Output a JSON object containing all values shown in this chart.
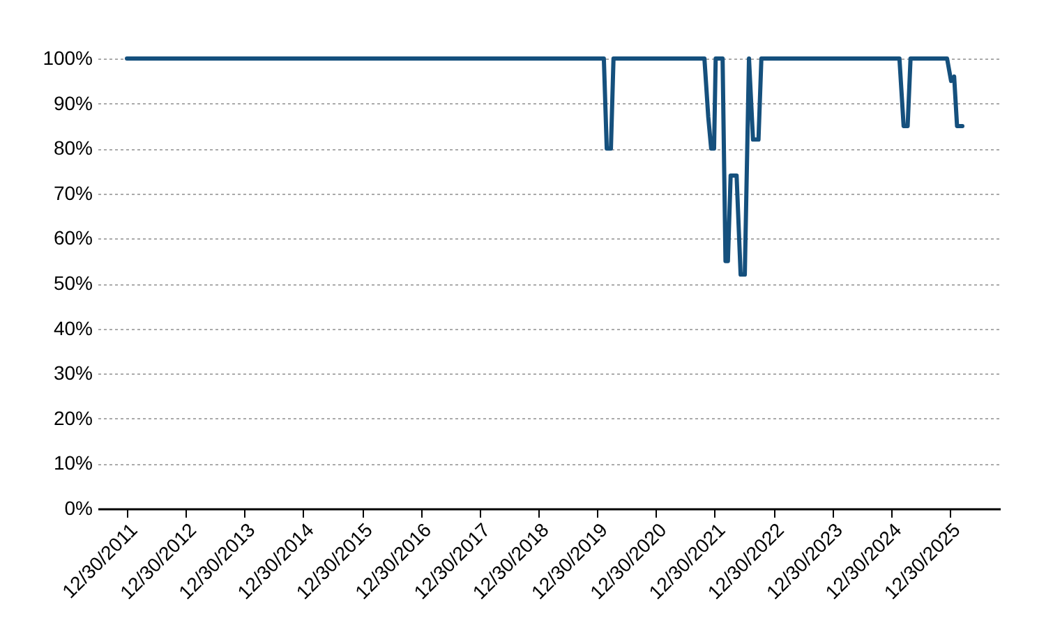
{
  "chart_data": {
    "type": "line",
    "x": [
      "2011-12-30",
      "2020-02-10",
      "2020-02-28",
      "2020-03-25",
      "2020-04-10",
      "2021-10-27",
      "2021-11-20",
      "2021-12-08",
      "2021-12-26",
      "2022-01-05",
      "2022-02-17",
      "2022-03-07",
      "2022-03-22",
      "2022-04-08",
      "2022-05-15",
      "2022-06-09",
      "2022-07-05",
      "2022-07-31",
      "2022-08-25",
      "2022-09-28",
      "2022-10-16",
      "2025-02-20",
      "2025-03-18",
      "2025-04-12",
      "2025-04-30",
      "2025-12-13",
      "2026-01-07",
      "2026-01-26",
      "2026-02-13",
      "2026-03-18"
    ],
    "series": [
      {
        "color": "#15507d",
        "values": [
          100,
          100,
          80,
          80,
          100,
          100,
          87,
          80,
          80,
          100,
          100,
          55,
          55,
          74,
          74,
          52,
          52,
          100,
          82,
          82,
          100,
          100,
          85,
          85,
          100,
          100,
          95,
          96,
          85,
          85
        ]
      }
    ],
    "xlim": [
      "2011-07-01",
      "2026-11-07"
    ],
    "xticks": [
      {
        "value": "2011-12-30",
        "label": "12/30/2011"
      },
      {
        "value": "2012-12-30",
        "label": "12/30/2012"
      },
      {
        "value": "2013-12-30",
        "label": "12/30/2013"
      },
      {
        "value": "2014-12-30",
        "label": "12/30/2014"
      },
      {
        "value": "2015-12-30",
        "label": "12/30/2015"
      },
      {
        "value": "2016-12-30",
        "label": "12/30/2016"
      },
      {
        "value": "2017-12-30",
        "label": "12/30/2017"
      },
      {
        "value": "2018-12-30",
        "label": "12/30/2018"
      },
      {
        "value": "2019-12-30",
        "label": "12/30/2019"
      },
      {
        "value": "2020-12-30",
        "label": "12/30/2020"
      },
      {
        "value": "2021-12-30",
        "label": "12/30/2021"
      },
      {
        "value": "2022-12-30",
        "label": "12/30/2022"
      },
      {
        "value": "2023-12-30",
        "label": "12/30/2023"
      },
      {
        "value": "2024-12-30",
        "label": "12/30/2024"
      },
      {
        "value": "2025-12-30",
        "label": "12/30/2025"
      }
    ],
    "ylim": [
      0,
      100
    ],
    "yticks": [
      {
        "value": 0,
        "label": "0%"
      },
      {
        "value": 10,
        "label": "10%"
      },
      {
        "value": 20,
        "label": "20%"
      },
      {
        "value": 30,
        "label": "30%"
      },
      {
        "value": 40,
        "label": "40%"
      },
      {
        "value": 50,
        "label": "50%"
      },
      {
        "value": 60,
        "label": "60%"
      },
      {
        "value": 70,
        "label": "70%"
      },
      {
        "value": 80,
        "label": "80%"
      },
      {
        "value": 90,
        "label": "90%"
      },
      {
        "value": 100,
        "label": "100%"
      }
    ],
    "grid": "y",
    "marker": "none",
    "line_style": "solid"
  }
}
